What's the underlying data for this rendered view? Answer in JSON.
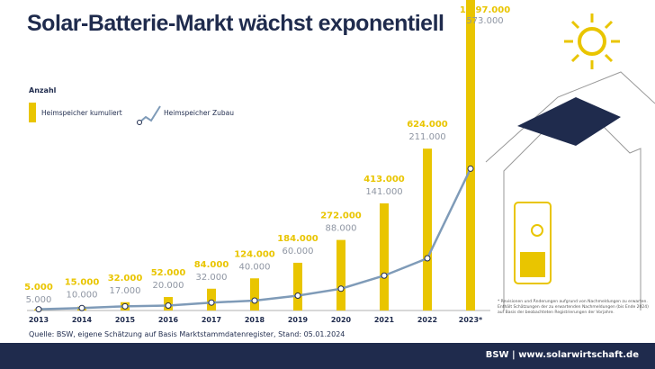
{
  "title": "Solar-Batterie-Markt wächst exponentiell",
  "footer": "BSW | www.solarwirtschaft.de",
  "source": "Quelle: BSW, eigene Schätzung auf Basis Marktstammdatenregister, Stand: 05.01.2024",
  "note": "* Revisionen und Änderungen aufgrund von Nachmeldungen zu erwarten. Enthält Schätzungen der zu erwartenden Nachmeldungen (bis Ende 2024) auf Basis der beobachteten Registrierungen der Vorjahre.",
  "colors": {
    "bar": "#e9c500",
    "line": "#7f9bb8",
    "navy": "#1f2b4d"
  },
  "chart_data": {
    "type": "bar+line",
    "ylabel": "Anzahl",
    "categories": [
      "2013",
      "2014",
      "2015",
      "2016",
      "2017",
      "2018",
      "2019",
      "2020",
      "2021",
      "2022",
      "2023*"
    ],
    "series": [
      {
        "name": "Heimspeicher kumuliert",
        "type": "bar",
        "values": [
          5000,
          15000,
          32000,
          52000,
          84000,
          124000,
          184000,
          272000,
          413000,
          624000,
          1197000
        ],
        "labels": [
          "5.000",
          "15.000",
          "32.000",
          "52.000",
          "84.000",
          "124.000",
          "184.000",
          "272.000",
          "413.000",
          "624.000",
          "1.197.000"
        ]
      },
      {
        "name": "Heimspeicher Zubau",
        "type": "line",
        "values": [
          5000,
          10000,
          17000,
          20000,
          32000,
          40000,
          60000,
          88000,
          141000,
          211000,
          573000
        ],
        "labels": [
          "5.000",
          "10.000",
          "17.000",
          "20.000",
          "32.000",
          "40.000",
          "60.000",
          "88.000",
          "141.000",
          "211.000",
          "573.000"
        ]
      }
    ],
    "grid": false,
    "legend": "top-left"
  }
}
